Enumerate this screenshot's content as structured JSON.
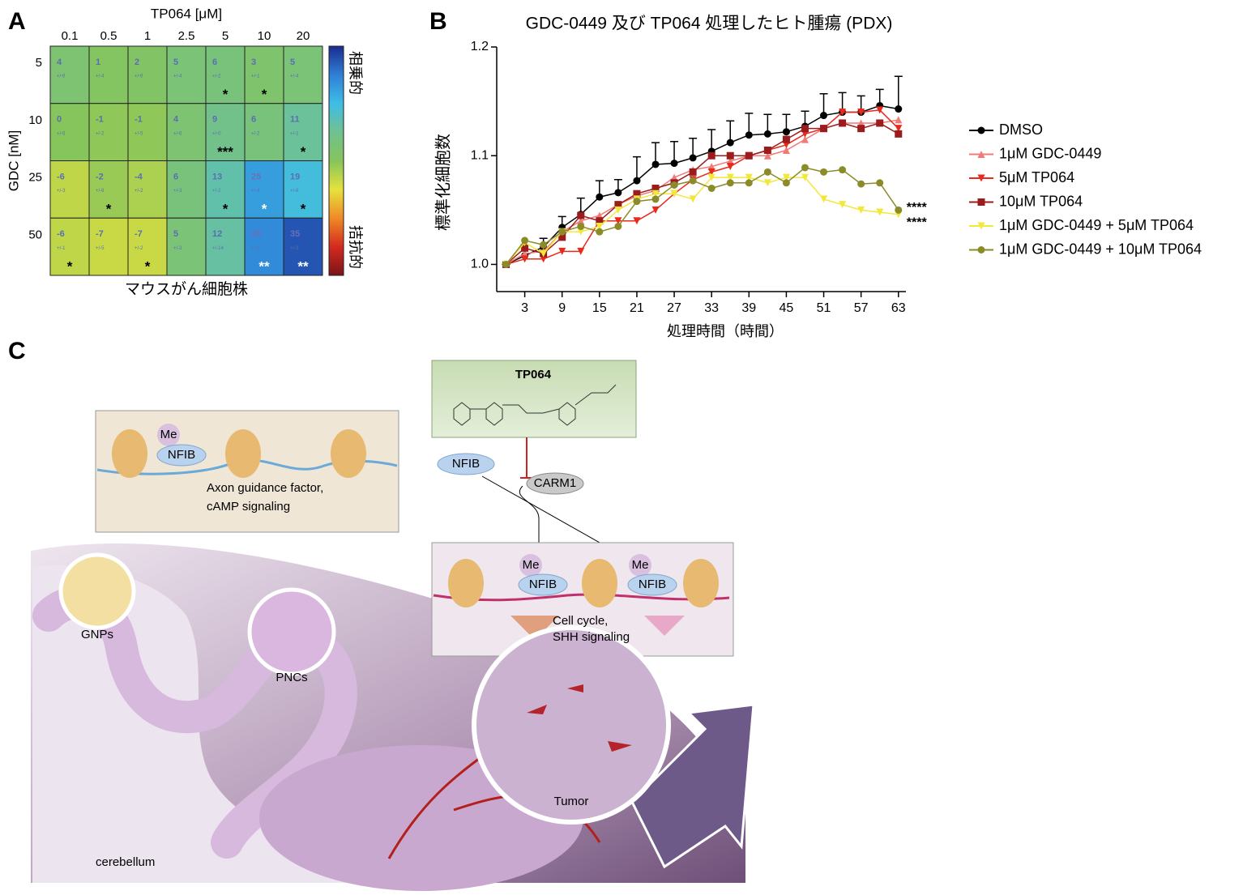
{
  "panel_labels": [
    "A",
    "B",
    "C"
  ],
  "chart_data": [
    {
      "type": "heatmap",
      "title": "TP064 [μM]",
      "ylabel": "GDC [nM]",
      "xlabel": "マウスがん細胞株",
      "columns": [
        "0.1",
        "0.5",
        "1",
        "2.5",
        "5",
        "10",
        "20"
      ],
      "rows": [
        "5",
        "10",
        "25",
        "50"
      ],
      "values": [
        [
          4,
          1,
          2,
          5,
          6,
          3,
          5
        ],
        [
          0,
          -1,
          -1,
          4,
          9,
          6,
          11
        ],
        [
          -6,
          -2,
          -4,
          6,
          13,
          25,
          19
        ],
        [
          -6,
          -7,
          -7,
          5,
          12,
          28,
          35
        ]
      ],
      "errors": [
        [
          "+/-6",
          "+/-4",
          "+/-6",
          "+/-4",
          "+/-2",
          "+/-1",
          "+/-4"
        ],
        [
          "+/-6",
          "+/-2",
          "+/-5",
          "+/-6",
          "+/-0",
          "+/-2",
          "+/-1"
        ],
        [
          "+/-3",
          "+/-6",
          "+/-2",
          "+/-3",
          "+/-2",
          "+/-4",
          "+/-8"
        ],
        [
          "+/-1",
          "+/-5",
          "+/-2",
          "+/-3",
          "+/-14",
          "+/-1",
          "+/-3"
        ]
      ],
      "stars": [
        [
          null,
          null,
          null,
          null,
          "*",
          "*",
          null
        ],
        [
          null,
          null,
          null,
          null,
          "***",
          null,
          "*"
        ],
        [
          null,
          "*",
          null,
          null,
          "*",
          "*",
          "*"
        ],
        [
          "*",
          null,
          "*",
          null,
          null,
          "**",
          "**"
        ]
      ],
      "zlim": [
        -40,
        40
      ],
      "colorscale": [
        "#7a1418",
        "#d42a20",
        "#ef8a26",
        "#e6e23c",
        "#86c45c",
        "#70c190",
        "#3fbde6",
        "#2f7fd6",
        "#1b2b8e"
      ],
      "colorbar_labels": [
        "相乗的",
        "拮抗的"
      ]
    },
    {
      "type": "line",
      "title": "GDC-0449 及び TP064 処理したヒト腫瘍 (PDX)",
      "xlabel": "処理時間（時間）",
      "ylabel": "標準化細胞数",
      "x": [
        0,
        3,
        6,
        9,
        12,
        15,
        18,
        21,
        24,
        27,
        30,
        33,
        36,
        39,
        42,
        45,
        48,
        51,
        54,
        57,
        60,
        63
      ],
      "xlim": [
        -1.5,
        64.2
      ],
      "xticks": [
        3,
        9,
        15,
        21,
        27,
        33,
        39,
        45,
        51,
        57,
        63
      ],
      "ylim": [
        0.975,
        1.2
      ],
      "yticks": [
        {
          "value": 1.0,
          "label": "1.0"
        },
        1.1,
        1.2
      ],
      "legend": "right",
      "series": [
        {
          "name": "DMSO",
          "color": "#000000",
          "marker": "circle",
          "values": [
            1.0,
            1.008,
            1.016,
            1.034,
            1.046,
            1.062,
            1.066,
            1.077,
            1.092,
            1.093,
            1.098,
            1.104,
            1.112,
            1.119,
            1.12,
            1.122,
            1.127,
            1.137,
            1.14,
            1.14,
            1.146,
            1.143
          ],
          "errors": [
            0,
            0.01,
            0.008,
            0.01,
            0.015,
            0.015,
            0.012,
            0.022,
            0.02,
            0.02,
            0.018,
            0.02,
            0.02,
            0.02,
            0.018,
            0.016,
            0.014,
            0.02,
            0.018,
            0.015,
            0.015,
            0.03
          ]
        },
        {
          "name": "1μM GDC-0449",
          "color": "#f07a78",
          "marker": "triangle-up",
          "values": [
            1.0,
            1.01,
            1.012,
            1.03,
            1.04,
            1.045,
            1.055,
            1.063,
            1.068,
            1.08,
            1.087,
            1.09,
            1.095,
            1.1,
            1.1,
            1.105,
            1.115,
            1.125,
            1.13,
            1.13,
            1.13,
            1.133
          ]
        },
        {
          "name": "5μM TP064",
          "color": "#e8291c",
          "marker": "triangle-down",
          "values": [
            1.0,
            1.005,
            1.005,
            1.012,
            1.012,
            1.04,
            1.04,
            1.04,
            1.05,
            1.065,
            1.078,
            1.085,
            1.09,
            1.1,
            1.105,
            1.11,
            1.12,
            1.125,
            1.14,
            1.14,
            1.142,
            1.125
          ]
        },
        {
          "name": "10μM TP064",
          "color": "#9b1c1c",
          "marker": "square",
          "values": [
            1.0,
            1.015,
            1.01,
            1.025,
            1.045,
            1.04,
            1.055,
            1.065,
            1.07,
            1.075,
            1.085,
            1.1,
            1.1,
            1.1,
            1.105,
            1.115,
            1.125,
            1.125,
            1.13,
            1.125,
            1.13,
            1.12
          ]
        },
        {
          "name": "1μM GDC-0449 + 5μM TP064",
          "color": "#f2e83a",
          "marker": "triangle-down",
          "values": [
            1.0,
            1.02,
            1.01,
            1.03,
            1.03,
            1.035,
            1.05,
            1.06,
            1.065,
            1.065,
            1.06,
            1.08,
            1.08,
            1.08,
            1.075,
            1.08,
            1.08,
            1.06,
            1.055,
            1.05,
            1.048,
            1.046
          ]
        },
        {
          "name": "1μM GDC-0449 + 10μM TP064",
          "color": "#8b8b2a",
          "marker": "circle",
          "values": [
            1.0,
            1.022,
            1.018,
            1.03,
            1.035,
            1.03,
            1.035,
            1.058,
            1.06,
            1.073,
            1.077,
            1.07,
            1.075,
            1.075,
            1.085,
            1.075,
            1.089,
            1.085,
            1.087,
            1.074,
            1.075,
            1.05
          ]
        }
      ],
      "annotations": [
        {
          "text": "****",
          "x": 63,
          "y": 1.052
        },
        {
          "text": "****",
          "x": 63,
          "y": 1.038
        }
      ]
    }
  ],
  "illustration": {
    "drug": "TP064",
    "nfib": "NFIB",
    "carm1": "CARM1",
    "me": "Me",
    "gnp_box": {
      "me": "Me",
      "nfib": "NFIB",
      "lines": [
        "Axon guidance factor,",
        "cAMP signaling"
      ]
    },
    "tumor_box": {
      "me": [
        "Me",
        "Me"
      ],
      "nfib": [
        "NFIB",
        "NFIB"
      ],
      "lines": [
        "Cell cycle,",
        "SHH signaling"
      ]
    },
    "cells": [
      "GNPs",
      "PNCs",
      "Tumor"
    ],
    "region": "cerebellum"
  }
}
